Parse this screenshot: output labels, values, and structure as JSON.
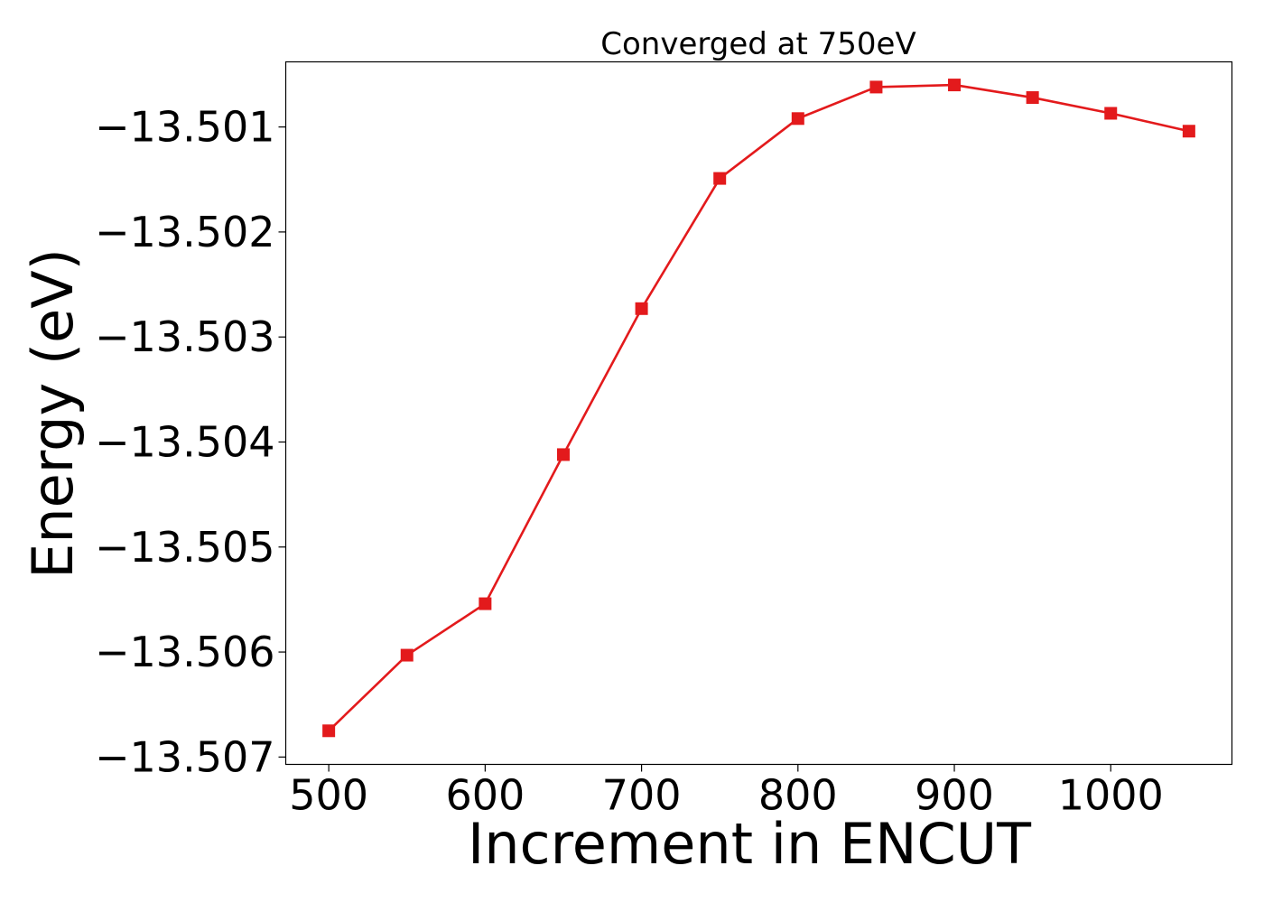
{
  "chart_data": {
    "type": "line",
    "title": "Converged at 750eV",
    "xlabel": "Increment in ENCUT",
    "ylabel": "Energy (eV)",
    "xlim": [
      472.5,
      1077.5
    ],
    "ylim": [
      -13.50707,
      -13.50038
    ],
    "xticks": [
      500,
      600,
      700,
      800,
      900,
      1000
    ],
    "yticks": [
      -13.501,
      -13.502,
      -13.503,
      -13.504,
      -13.505,
      -13.506,
      -13.507
    ],
    "ytick_labels": [
      "−13.501",
      "−13.502",
      "−13.503",
      "−13.504",
      "−13.505",
      "−13.506",
      "−13.507"
    ],
    "grid": false,
    "series": [
      {
        "color": "#e31a1c",
        "marker": "square",
        "x": [
          500,
          550,
          600,
          650,
          700,
          750,
          800,
          850,
          900,
          950,
          1000,
          1050
        ],
        "y": [
          -13.50675,
          -13.50603,
          -13.50554,
          -13.50412,
          -13.50273,
          -13.50149,
          -13.50092,
          -13.50062,
          -13.5006,
          -13.50072,
          -13.50087,
          -13.50104
        ]
      }
    ]
  }
}
